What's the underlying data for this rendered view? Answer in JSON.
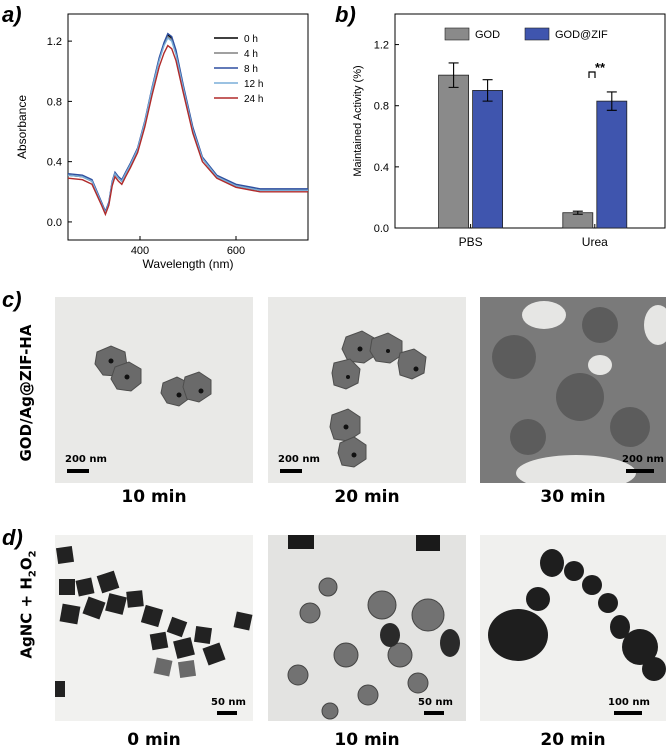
{
  "panels": {
    "a": "a)",
    "b": "b)",
    "c": "c)",
    "d": "d)"
  },
  "chart_data": [
    {
      "type": "line",
      "panel": "a",
      "xlabel": "Wavelength (nm)",
      "ylabel": "Absorbance",
      "xlim": [
        250,
        750
      ],
      "ylim": [
        -0.12,
        1.38
      ],
      "xticks": [
        "400",
        "600"
      ],
      "yticks": [
        "0.0",
        "0.4",
        "0.8",
        "1.2"
      ],
      "grid": false,
      "legend": "top-right",
      "x": [
        250,
        280,
        300,
        320,
        328,
        335,
        342,
        348,
        355,
        362,
        370,
        380,
        395,
        410,
        425,
        440,
        450,
        458,
        466,
        475,
        490,
        510,
        530,
        560,
        600,
        650,
        700,
        750
      ],
      "series": [
        {
          "name": "0 h",
          "color": "#000000",
          "values": [
            0.31,
            0.3,
            0.27,
            0.12,
            0.06,
            0.12,
            0.26,
            0.32,
            0.29,
            0.27,
            0.32,
            0.38,
            0.48,
            0.66,
            0.88,
            1.08,
            1.18,
            1.24,
            1.22,
            1.13,
            0.9,
            0.62,
            0.42,
            0.3,
            0.24,
            0.21,
            0.21,
            0.21
          ]
        },
        {
          "name": "4 h",
          "color": "#808080",
          "values": [
            0.31,
            0.3,
            0.27,
            0.12,
            0.06,
            0.12,
            0.26,
            0.32,
            0.29,
            0.27,
            0.32,
            0.38,
            0.48,
            0.66,
            0.88,
            1.08,
            1.18,
            1.23,
            1.21,
            1.12,
            0.89,
            0.62,
            0.42,
            0.3,
            0.24,
            0.21,
            0.21,
            0.21
          ]
        },
        {
          "name": "8 h",
          "color": "#2e4fa0",
          "values": [
            0.32,
            0.31,
            0.28,
            0.13,
            0.07,
            0.13,
            0.27,
            0.33,
            0.3,
            0.28,
            0.33,
            0.39,
            0.49,
            0.67,
            0.89,
            1.09,
            1.19,
            1.25,
            1.23,
            1.14,
            0.91,
            0.63,
            0.43,
            0.31,
            0.25,
            0.22,
            0.22,
            0.22
          ]
        },
        {
          "name": "12 h",
          "color": "#7aaed8",
          "values": [
            0.31,
            0.3,
            0.27,
            0.12,
            0.06,
            0.12,
            0.26,
            0.32,
            0.29,
            0.27,
            0.32,
            0.38,
            0.48,
            0.66,
            0.88,
            1.07,
            1.17,
            1.22,
            1.2,
            1.11,
            0.89,
            0.61,
            0.42,
            0.3,
            0.24,
            0.21,
            0.21,
            0.21
          ]
        },
        {
          "name": "24 h",
          "color": "#b02a2a",
          "values": [
            0.29,
            0.28,
            0.25,
            0.11,
            0.05,
            0.11,
            0.24,
            0.3,
            0.27,
            0.25,
            0.3,
            0.36,
            0.46,
            0.63,
            0.84,
            1.03,
            1.12,
            1.17,
            1.15,
            1.07,
            0.86,
            0.59,
            0.4,
            0.29,
            0.23,
            0.2,
            0.2,
            0.2
          ]
        }
      ]
    },
    {
      "type": "bar",
      "panel": "b",
      "ylabel": "Maintained Activity (%)",
      "xlabel": "",
      "categories": [
        "PBS",
        "Urea"
      ],
      "ylim": [
        0,
        1.4
      ],
      "yticks": [
        "0.0",
        "0.4",
        "0.8",
        "1.2"
      ],
      "grid": false,
      "legend": "top",
      "series": [
        {
          "name": "GOD",
          "color": "#8a8a8a",
          "values": [
            1.0,
            0.1
          ],
          "errors": [
            0.08,
            0.01
          ]
        },
        {
          "name": "GOD@ZIF",
          "color": "#3f55ae",
          "values": [
            0.9,
            0.83
          ],
          "errors": [
            0.07,
            0.06
          ]
        }
      ],
      "annotation": "**"
    }
  ],
  "row_c": {
    "label": "GOD/Ag@ZIF-HA",
    "images": [
      {
        "caption": "10 min",
        "scale": "200 nm"
      },
      {
        "caption": "20 min",
        "scale": "200 nm"
      },
      {
        "caption": "30 min",
        "scale": "200 nm"
      }
    ]
  },
  "row_d": {
    "label_main": "AgNC + H",
    "label_sub": "2",
    "label_mid": "O",
    "label_sub2": "2",
    "images": [
      {
        "caption": "0 min",
        "scale": "50 nm"
      },
      {
        "caption": "10 min",
        "scale": "50 nm"
      },
      {
        "caption": "20 min",
        "scale": "100 nm"
      }
    ]
  }
}
